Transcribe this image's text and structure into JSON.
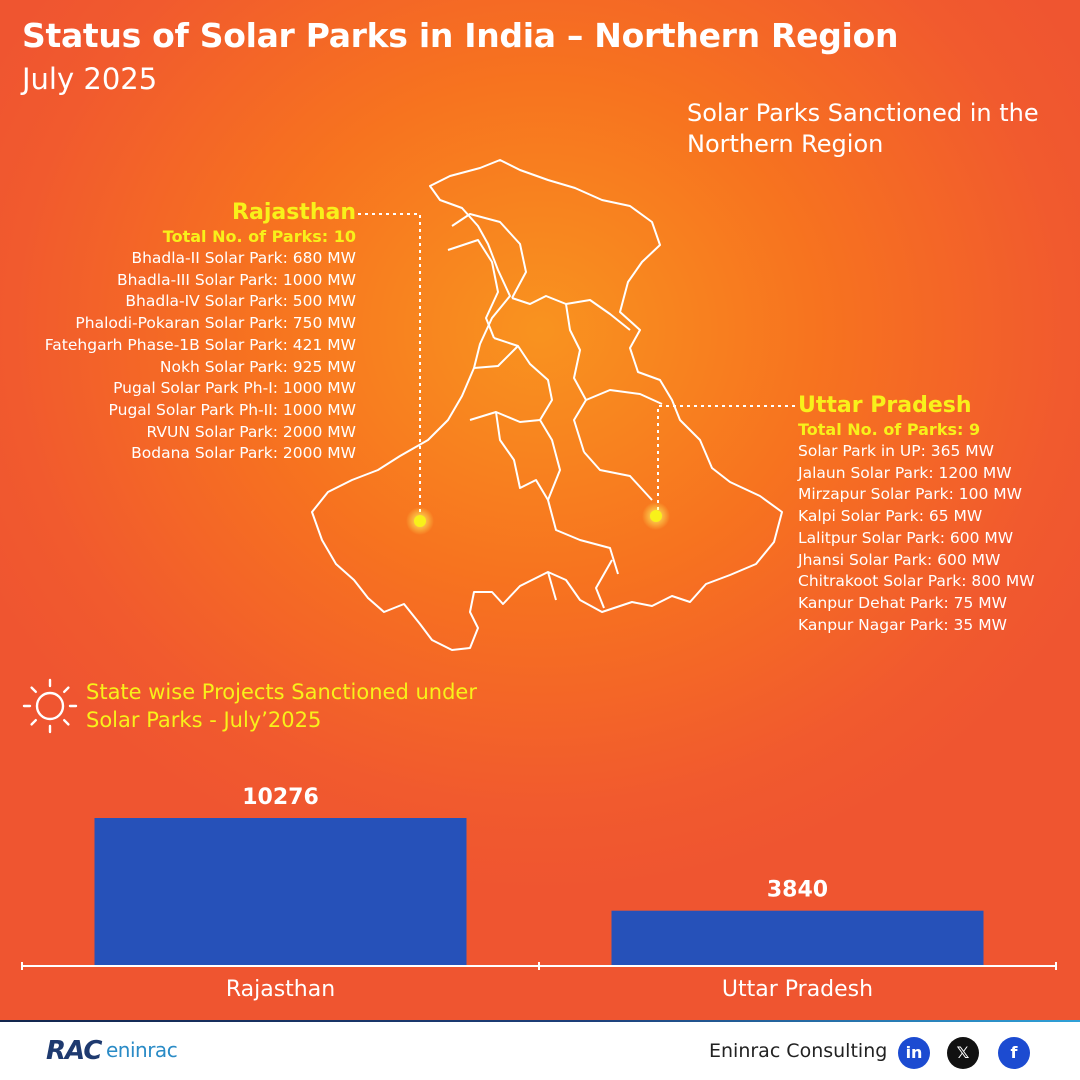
{
  "header": {
    "title": "Status of Solar Parks in India – Northern Region",
    "subtitle": "July 2025"
  },
  "map_section": {
    "title_lines": [
      "Solar Parks Sanctioned in the",
      "Northern Region"
    ],
    "states": {
      "rajasthan": {
        "name": "Rajasthan",
        "total": "Total No. of Parks: 10",
        "parks": [
          "Bhadla-II Solar Park: 680 MW",
          "Bhadla-III Solar Park: 1000 MW",
          "Bhadla-IV Solar Park: 500 MW",
          "Phalodi-Pokaran Solar Park: 750 MW",
          "Fatehgarh Phase-1B Solar Park: 421 MW",
          "Nokh Solar Park: 925 MW",
          "Pugal Solar Park Ph-I: 1000 MW",
          "Pugal Solar Park Ph-II: 1000 MW",
          "RVUN Solar Park: 2000 MW",
          "Bodana Solar Park: 2000 MW"
        ]
      },
      "uttar_pradesh": {
        "name": "Uttar Pradesh",
        "total": "Total No. of Parks: 9",
        "parks": [
          "Solar Park in UP: 365 MW",
          "Jalaun Solar Park: 1200 MW",
          "Mirzapur Solar Park: 100 MW",
          "Kalpi Solar Park: 65 MW",
          "Lalitpur Solar Park: 600 MW",
          "Jhansi Solar Park: 600 MW",
          "Chitrakoot Solar Park: 800 MW",
          "Kanpur Dehat Park: 75 MW",
          "Kanpur Nagar Park: 35 MW"
        ]
      }
    },
    "colors": {
      "highlight": "#f8f11a",
      "text": "#ffffff"
    }
  },
  "chart_section": {
    "icon": "sun-icon",
    "title_lines": [
      "State wise Projects Sanctioned under",
      "Solar Parks - July’2025"
    ]
  },
  "chart_data": {
    "type": "bar",
    "categories": [
      "Rajasthan",
      "Uttar Pradesh"
    ],
    "values": [
      10276,
      3840
    ],
    "data_labels": [
      "10276",
      "3840"
    ],
    "title": "State wise Projects Sanctioned under Solar Parks - July’2025",
    "xlabel": "",
    "ylabel": "",
    "ylim": [
      0,
      10276
    ],
    "grid": false,
    "bar_color": "#2651b9"
  },
  "footer": {
    "logo_text_1": "RAC",
    "logo_text_2": "eninrac",
    "company": "Eninrac Consulting",
    "social": [
      {
        "icon": "linkedin-icon",
        "glyph": "in"
      },
      {
        "icon": "x-icon",
        "glyph": "𝕏"
      },
      {
        "icon": "facebook-icon",
        "glyph": "f"
      }
    ]
  }
}
